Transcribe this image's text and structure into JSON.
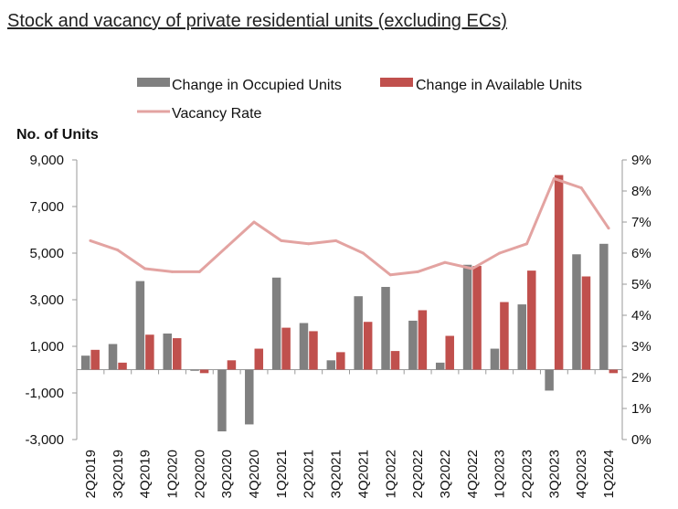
{
  "page_title": "Stock and vacancy of private residential units (excluding ECs)",
  "chart_data": {
    "type": "bar",
    "title": "",
    "y_axis_title": "No. of Units",
    "categories": [
      "2Q2019",
      "3Q2019",
      "4Q2019",
      "1Q2020",
      "2Q2020",
      "3Q2020",
      "4Q2020",
      "1Q2021",
      "2Q2021",
      "3Q2021",
      "4Q2021",
      "1Q2022",
      "2Q2022",
      "3Q2022",
      "4Q2022",
      "1Q2023",
      "2Q2023",
      "3Q2023",
      "4Q2023",
      "1Q2024"
    ],
    "series": [
      {
        "name": "Change in Occupied Units",
        "type": "bar",
        "axis": "left",
        "color": "#808080",
        "values": [
          600,
          1100,
          3800,
          1550,
          -50,
          -2650,
          -2350,
          3950,
          2000,
          400,
          3150,
          3550,
          2100,
          300,
          4500,
          900,
          2800,
          -900,
          4950,
          5400
        ]
      },
      {
        "name": "Change in Available Units",
        "type": "bar",
        "axis": "left",
        "color": "#c0504d",
        "values": [
          850,
          300,
          1500,
          1350,
          -150,
          400,
          900,
          1800,
          1650,
          750,
          2050,
          800,
          2550,
          1450,
          4450,
          2900,
          4250,
          8350,
          4000,
          -150
        ]
      },
      {
        "name": "Vacancy Rate",
        "type": "line",
        "axis": "right",
        "color": "#e3a3a1",
        "values": [
          6.4,
          6.1,
          5.5,
          5.4,
          5.4,
          6.2,
          7.0,
          6.4,
          6.3,
          6.4,
          6.0,
          5.3,
          5.4,
          5.7,
          5.5,
          6.0,
          6.3,
          8.4,
          8.1,
          6.8
        ]
      }
    ],
    "y_left": {
      "range": [
        -3000,
        9000
      ],
      "ticks": [
        "-3,000",
        "-1,000",
        "1,000",
        "3,000",
        "5,000",
        "7,000",
        "9,000"
      ],
      "tick_values": [
        -3000,
        -1000,
        1000,
        3000,
        5000,
        7000,
        9000
      ]
    },
    "y_right": {
      "range": [
        0,
        9
      ],
      "ticks": [
        "0%",
        "1%",
        "2%",
        "3%",
        "4%",
        "5%",
        "6%",
        "7%",
        "8%",
        "9%"
      ],
      "tick_values": [
        0,
        1,
        2,
        3,
        4,
        5,
        6,
        7,
        8,
        9
      ]
    },
    "grid": false,
    "legend_position": "top"
  }
}
